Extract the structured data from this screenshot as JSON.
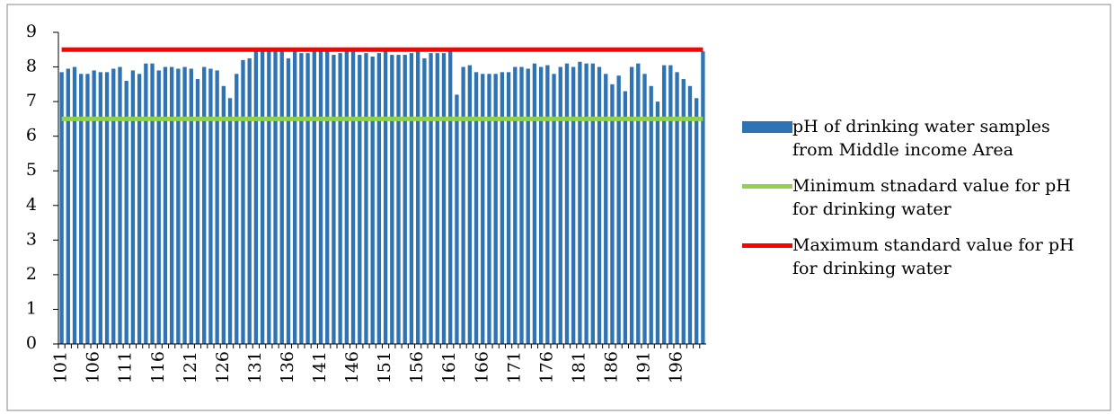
{
  "chart_data": {
    "type": "bar",
    "categories": [
      "101",
      null,
      null,
      null,
      null,
      "106",
      null,
      null,
      null,
      null,
      "111",
      null,
      null,
      null,
      null,
      "116",
      null,
      null,
      null,
      null,
      "121",
      null,
      null,
      null,
      null,
      "126",
      null,
      null,
      null,
      null,
      "131",
      null,
      null,
      null,
      null,
      "136",
      null,
      null,
      null,
      null,
      "141",
      null,
      null,
      null,
      null,
      "146",
      null,
      null,
      null,
      null,
      "151",
      null,
      null,
      null,
      null,
      "156",
      null,
      null,
      null,
      null,
      "161",
      null,
      null,
      null,
      null,
      "166",
      null,
      null,
      null,
      null,
      "171",
      null,
      null,
      null,
      null,
      "176",
      null,
      null,
      null,
      null,
      "181",
      null,
      null,
      null,
      null,
      "186",
      null,
      null,
      null,
      null,
      "191",
      null,
      null,
      null,
      null,
      "196",
      null,
      null,
      null,
      null
    ],
    "series": [
      {
        "name": "pH of drinking water samples from Middle income Area",
        "type": "bar",
        "color": "#2e74b5",
        "values": [
          7.85,
          7.95,
          8.0,
          7.8,
          7.8,
          7.9,
          7.85,
          7.85,
          7.95,
          8.0,
          7.6,
          7.9,
          7.8,
          8.1,
          8.1,
          7.9,
          8.0,
          8.0,
          7.95,
          8.0,
          7.95,
          7.65,
          8.0,
          7.95,
          7.9,
          7.45,
          7.1,
          7.8,
          8.2,
          8.25,
          8.45,
          8.45,
          8.45,
          8.45,
          8.45,
          8.25,
          8.45,
          8.4,
          8.4,
          8.45,
          8.45,
          8.45,
          8.35,
          8.4,
          8.45,
          8.45,
          8.35,
          8.4,
          8.3,
          8.4,
          8.45,
          8.35,
          8.35,
          8.35,
          8.4,
          8.45,
          8.25,
          8.4,
          8.4,
          8.4,
          8.45,
          7.2,
          8.0,
          8.05,
          7.85,
          7.8,
          7.8,
          7.8,
          7.85,
          7.85,
          8.0,
          8.0,
          7.95,
          8.1,
          8.0,
          8.05,
          7.8,
          8.0,
          8.1,
          8.0,
          8.15,
          8.1,
          8.1,
          8.0,
          7.8,
          7.5,
          7.75,
          7.3,
          8.0,
          8.1,
          7.8,
          7.45,
          7.0,
          8.05,
          8.05,
          7.85,
          7.65,
          7.45,
          7.1,
          8.45
        ]
      },
      {
        "name": "Minimum stnadard value for pH for drinking water",
        "type": "line",
        "color": "#92d050",
        "values": [
          6.5,
          6.5,
          6.5,
          6.5,
          6.5,
          6.5,
          6.5,
          6.5,
          6.5,
          6.5,
          6.5,
          6.5,
          6.5,
          6.5,
          6.5,
          6.5,
          6.5,
          6.5,
          6.5,
          6.5,
          6.5,
          6.5,
          6.5,
          6.5,
          6.5,
          6.5,
          6.5,
          6.5,
          6.5,
          6.5,
          6.5,
          6.5,
          6.5,
          6.5,
          6.5,
          6.5,
          6.5,
          6.5,
          6.5,
          6.5,
          6.5,
          6.5,
          6.5,
          6.5,
          6.5,
          6.5,
          6.5,
          6.5,
          6.5,
          6.5,
          6.5,
          6.5,
          6.5,
          6.5,
          6.5,
          6.5,
          6.5,
          6.5,
          6.5,
          6.5,
          6.5,
          6.5,
          6.5,
          6.5,
          6.5,
          6.5,
          6.5,
          6.5,
          6.5,
          6.5,
          6.5,
          6.5,
          6.5,
          6.5,
          6.5,
          6.5,
          6.5,
          6.5,
          6.5,
          6.5,
          6.5,
          6.5,
          6.5,
          6.5,
          6.5,
          6.5,
          6.5,
          6.5,
          6.5,
          6.5,
          6.5,
          6.5,
          6.5,
          6.5,
          6.5,
          6.5,
          6.5,
          6.5,
          6.5,
          6.5
        ]
      },
      {
        "name": "Maximum standard value for pH for drinking water",
        "type": "line",
        "color": "#ff0000",
        "values": [
          8.5,
          8.5,
          8.5,
          8.5,
          8.5,
          8.5,
          8.5,
          8.5,
          8.5,
          8.5,
          8.5,
          8.5,
          8.5,
          8.5,
          8.5,
          8.5,
          8.5,
          8.5,
          8.5,
          8.5,
          8.5,
          8.5,
          8.5,
          8.5,
          8.5,
          8.5,
          8.5,
          8.5,
          8.5,
          8.5,
          8.5,
          8.5,
          8.5,
          8.5,
          8.5,
          8.5,
          8.5,
          8.5,
          8.5,
          8.5,
          8.5,
          8.5,
          8.5,
          8.5,
          8.5,
          8.5,
          8.5,
          8.5,
          8.5,
          8.5,
          8.5,
          8.5,
          8.5,
          8.5,
          8.5,
          8.5,
          8.5,
          8.5,
          8.5,
          8.5,
          8.5,
          8.5,
          8.5,
          8.5,
          8.5,
          8.5,
          8.5,
          8.5,
          8.5,
          8.5,
          8.5,
          8.5,
          8.5,
          8.5,
          8.5,
          8.5,
          8.5,
          8.5,
          8.5,
          8.5,
          8.5,
          8.5,
          8.5,
          8.5,
          8.5,
          8.5,
          8.5,
          8.5,
          8.5,
          8.5,
          8.5,
          8.5,
          8.5,
          8.5,
          8.5,
          8.5,
          8.5,
          8.5,
          8.5,
          8.5
        ]
      }
    ],
    "ylim": [
      0,
      9
    ],
    "yticks": [
      0,
      1,
      2,
      3,
      4,
      5,
      6,
      7,
      8,
      9
    ],
    "grid": false
  }
}
